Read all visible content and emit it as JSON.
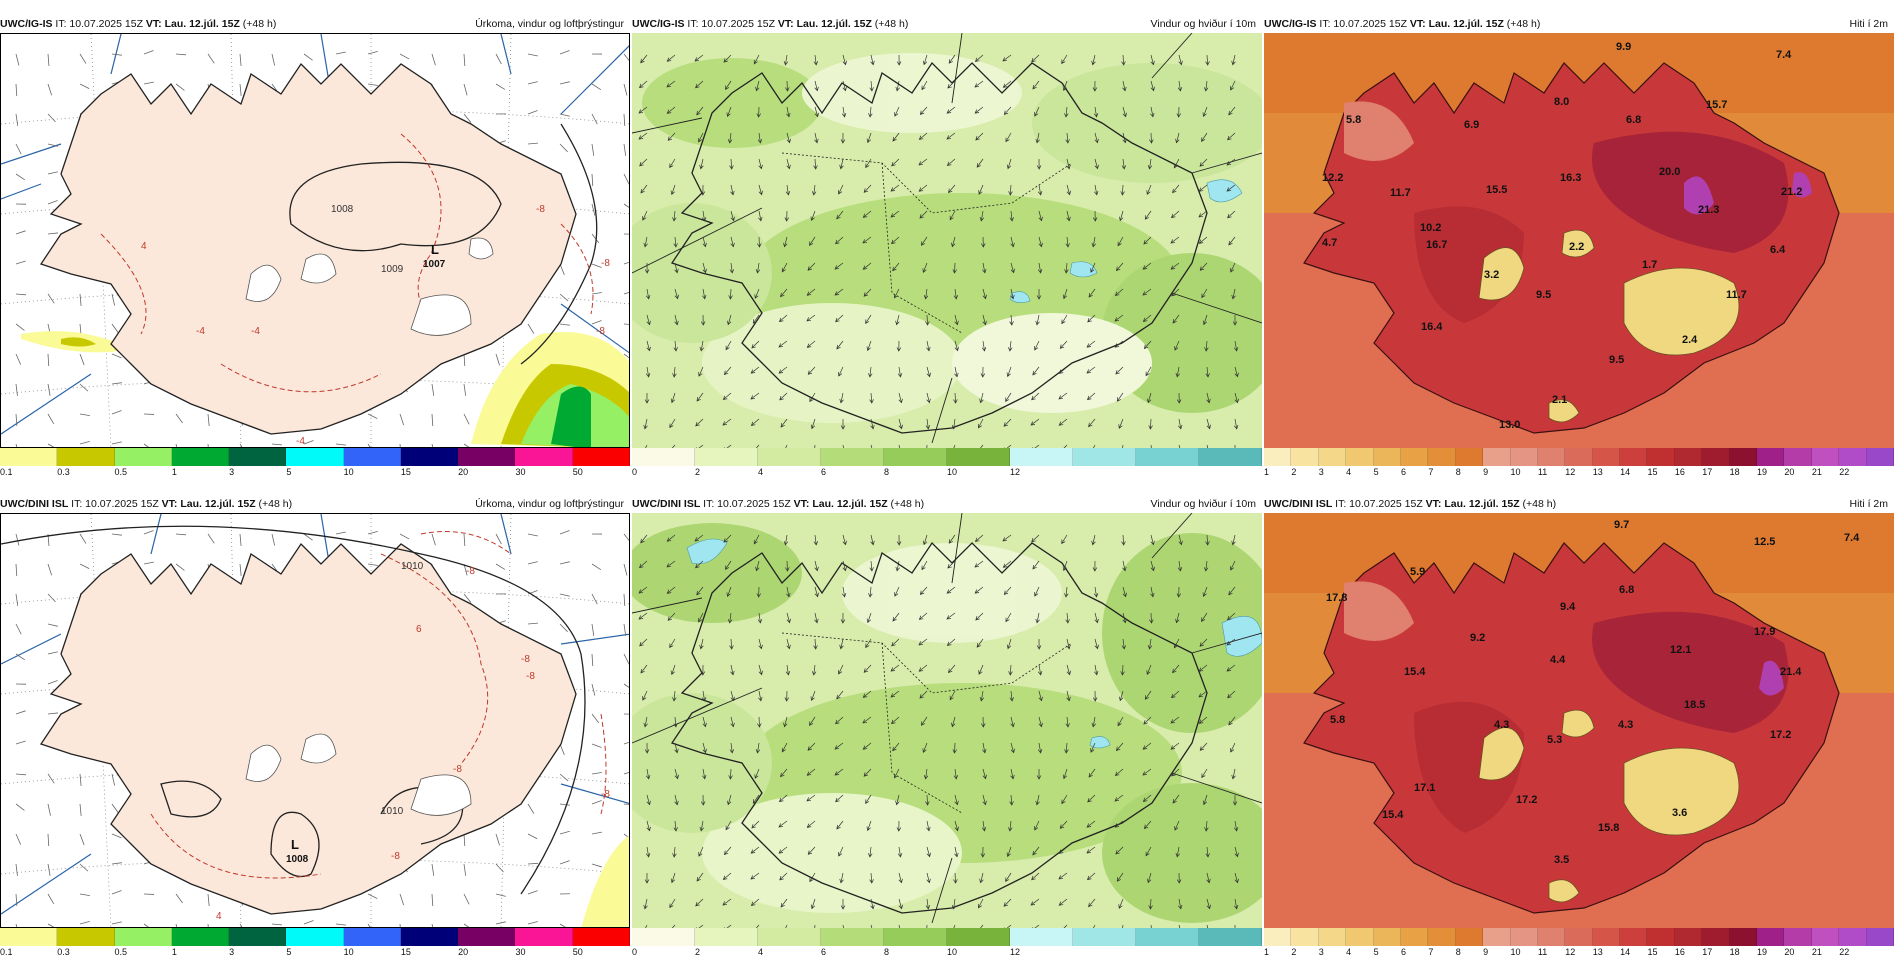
{
  "panels": [
    {
      "model": "UWC/IG-IS",
      "it": "IT: 10.07.2025 15Z",
      "vt": "VT: Lau. 12.júl. 15Z",
      "lead": "(+48 h)",
      "field": "Úrkoma, vindur og loftþrýstingur",
      "legend": {
        "colors": [
          "#fafa96",
          "#c8c800",
          "#96f064",
          "#00aa32",
          "#006440",
          "#00fafa",
          "#3264fa",
          "#000078",
          "#780064",
          "#fa1496",
          "#fa0000"
        ],
        "ticks": [
          "0.1",
          "0.3",
          "0.5",
          "1",
          "3",
          "5",
          "10",
          "15",
          "20",
          "30",
          "50"
        ]
      },
      "pressure_labels": [
        "1008",
        "1009"
      ],
      "lows": [
        {
          "symbol": "L",
          "value": "1007"
        }
      ],
      "temp_labels": [
        "-8",
        "-8",
        "-8",
        "4",
        "-4",
        "-4",
        "-4"
      ]
    },
    {
      "model": "UWC/IG-IS",
      "it": "IT: 10.07.2025 15Z",
      "vt": "VT: Lau. 12.júl. 15Z",
      "lead": "(+48 h)",
      "field": "Vindur og hviður í 10m",
      "legend": {
        "colors": [
          "#fafae6",
          "#e6f5be",
          "#d2eba0",
          "#b4dc78",
          "#96cd5a",
          "#78b43c",
          "#c8f5f5",
          "#a0e6e6",
          "#78d2d2",
          "#5ab9b9"
        ],
        "ticks": [
          "0",
          "2",
          "4",
          "6",
          "8",
          "10",
          "12"
        ]
      }
    },
    {
      "model": "UWC/IG-IS",
      "it": "IT: 10.07.2025 15Z",
      "vt": "VT: Lau. 12.júl. 15Z",
      "lead": "(+48 h)",
      "field": "Hiti í 2m",
      "legend": {
        "colors": [
          "#fbeebe",
          "#f8e3a0",
          "#f5d78a",
          "#f0c870",
          "#ebb55a",
          "#e8a245",
          "#e38e38",
          "#de7a30",
          "#e8a08a",
          "#e59584",
          "#e0806e",
          "#da6a5a",
          "#d55548",
          "#cc3f3c",
          "#c03030",
          "#b02830",
          "#9e1c2e",
          "#8c1030",
          "#a0208a",
          "#b43ca8",
          "#c050c0",
          "#b04cc8",
          "#9848c8"
        ],
        "ticks": [
          "1",
          "2",
          "3",
          "4",
          "5",
          "6",
          "7",
          "8",
          "9",
          "10",
          "11",
          "12",
          "13",
          "14",
          "15",
          "16",
          "17",
          "18",
          "19",
          "20",
          "21",
          "22"
        ]
      },
      "values": [
        "9.9",
        "7.4",
        "5.8",
        "6.9",
        "8.0",
        "6.8",
        "15.7",
        "12.2",
        "11.7",
        "15.5",
        "16.3",
        "20.0",
        "21.2",
        "21.3",
        "4.7",
        "10.2",
        "16.7",
        "2.2",
        "6.4",
        "3.2",
        "9.5",
        "1.7",
        "11.7",
        "16.4",
        "2.4",
        "9.5",
        "2.1",
        "13.0"
      ]
    },
    {
      "model": "UWC/DINI ISL",
      "it": "IT: 10.07.2025 15Z",
      "vt": "VT: Lau. 12.júl. 15Z",
      "lead": "(+48 h)",
      "field": "Úrkoma, vindur og loftþrýstingur",
      "legend": {
        "colors": [
          "#fafa96",
          "#c8c800",
          "#96f064",
          "#00aa32",
          "#006440",
          "#00fafa",
          "#3264fa",
          "#000078",
          "#780064",
          "#fa1496",
          "#fa0000"
        ],
        "ticks": [
          "0.1",
          "0.3",
          "0.5",
          "1",
          "3",
          "5",
          "10",
          "15",
          "20",
          "30",
          "50"
        ]
      },
      "pressure_labels": [
        "1010",
        "1010"
      ],
      "lows": [
        {
          "symbol": "L",
          "value": "1008"
        }
      ],
      "temp_labels": [
        "-8",
        "-8",
        "-8",
        "6",
        "-8",
        "-8",
        "-8",
        "4"
      ]
    },
    {
      "model": "UWC/DINI ISL",
      "it": "IT: 10.07.2025 15Z",
      "vt": "VT: Lau. 12.júl. 15Z",
      "lead": "(+48 h)",
      "field": "Vindur og hviður í 10m",
      "legend": {
        "colors": [
          "#fafae6",
          "#e6f5be",
          "#d2eba0",
          "#b4dc78",
          "#96cd5a",
          "#78b43c",
          "#c8f5f5",
          "#a0e6e6",
          "#78d2d2",
          "#5ab9b9"
        ],
        "ticks": [
          "0",
          "2",
          "4",
          "6",
          "8",
          "10",
          "12"
        ]
      }
    },
    {
      "model": "UWC/DINI ISL",
      "it": "IT: 10.07.2025 15Z",
      "vt": "VT: Lau. 12.júl. 15Z",
      "lead": "(+48 h)",
      "field": "Hiti í 2m",
      "legend": {
        "colors": [
          "#fbeebe",
          "#f8e3a0",
          "#f5d78a",
          "#f0c870",
          "#ebb55a",
          "#e8a245",
          "#e38e38",
          "#de7a30",
          "#e8a08a",
          "#e59584",
          "#e0806e",
          "#da6a5a",
          "#d55548",
          "#cc3f3c",
          "#c03030",
          "#b02830",
          "#9e1c2e",
          "#8c1030",
          "#a0208a",
          "#b43ca8",
          "#c050c0",
          "#b04cc8",
          "#9848c8"
        ],
        "ticks": [
          "1",
          "2",
          "3",
          "4",
          "5",
          "6",
          "7",
          "8",
          "9",
          "10",
          "11",
          "12",
          "13",
          "14",
          "15",
          "16",
          "17",
          "18",
          "19",
          "20",
          "21",
          "22"
        ]
      },
      "values": [
        "9.7",
        "12.5",
        "7.4",
        "5.9",
        "17.8",
        "9.4",
        "6.8",
        "9.2",
        "12.1",
        "17.9",
        "4.4",
        "15.4",
        "21.4",
        "18.5",
        "5.8",
        "4.3",
        "4.3",
        "5.3",
        "17.2",
        "15.4",
        "17.1",
        "17.2",
        "3.6",
        "15.8",
        "3.5"
      ]
    }
  ]
}
